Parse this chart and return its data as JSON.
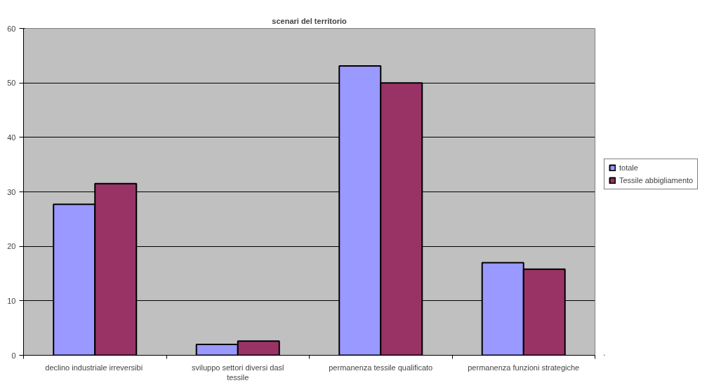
{
  "chart_data": {
    "type": "bar",
    "title": "scenari del territorio",
    "categories": [
      "declino industriale  irreversibi",
      "sviluppo settori diversi dasl tessile",
      "permanenza tessile qualificato",
      "permanenza funzioni strategiche"
    ],
    "series": [
      {
        "name": "totale",
        "color": "#9999ff",
        "values": [
          27.7,
          2.0,
          53.1,
          17.0
        ]
      },
      {
        "name": "Tessile abbigliamento",
        "color": "#993366",
        "values": [
          31.5,
          2.6,
          50.0,
          15.8
        ]
      }
    ],
    "ylim": [
      0,
      60
    ],
    "yticks": [
      0,
      10,
      20,
      30,
      40,
      50,
      60
    ],
    "grid": "y",
    "legend": "right"
  }
}
